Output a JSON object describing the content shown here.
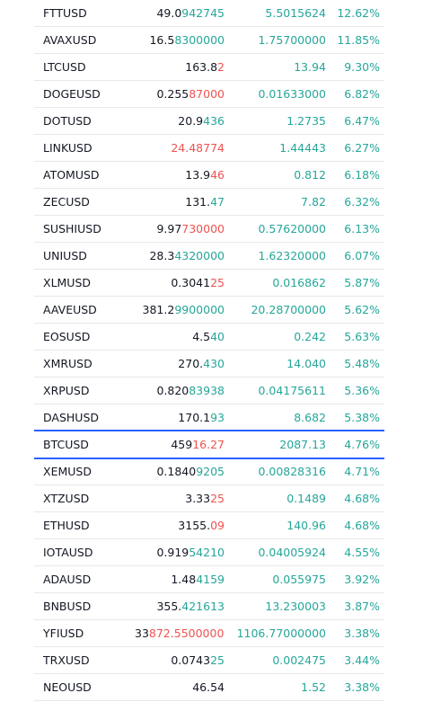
{
  "trend_colors": {
    "up": "#26a69a",
    "down": "#ef5350"
  },
  "highlight_color": "#2962ff",
  "rows": [
    {
      "symbol": "FTTUSD",
      "price_lead": "49.0",
      "price_tail": "942745",
      "tail_trend": "up",
      "change": "5.5015624",
      "change_pct": "12.62%"
    },
    {
      "symbol": "AVAXUSD",
      "price_lead": "16.5",
      "price_tail": "8300000",
      "tail_trend": "up",
      "change": "1.75700000",
      "change_pct": "11.85%"
    },
    {
      "symbol": "LTCUSD",
      "price_lead": "163.8",
      "price_tail": "2",
      "tail_trend": "down",
      "change": "13.94",
      "change_pct": "9.30%"
    },
    {
      "symbol": "DOGEUSD",
      "price_lead": "0.255",
      "price_tail": "87000",
      "tail_trend": "down",
      "change": "0.01633000",
      "change_pct": "6.82%"
    },
    {
      "symbol": "DOTUSD",
      "price_lead": "20.9",
      "price_tail": "436",
      "tail_trend": "up",
      "change": "1.2735",
      "change_pct": "6.47%"
    },
    {
      "symbol": "LINKUSD",
      "price_lead": "",
      "price_tail": "24.48774",
      "tail_trend": "down",
      "change": "1.44443",
      "change_pct": "6.27%"
    },
    {
      "symbol": "ATOMUSD",
      "price_lead": "13.9",
      "price_tail": "46",
      "tail_trend": "down",
      "change": "0.812",
      "change_pct": "6.18%"
    },
    {
      "symbol": "ZECUSD",
      "price_lead": "131.",
      "price_tail": "47",
      "tail_trend": "up",
      "change": "7.82",
      "change_pct": "6.32%"
    },
    {
      "symbol": "SUSHIUSD",
      "price_lead": "9.97",
      "price_tail": "730000",
      "tail_trend": "down",
      "change": "0.57620000",
      "change_pct": "6.13%"
    },
    {
      "symbol": "UNIUSD",
      "price_lead": "28.3",
      "price_tail": "4320000",
      "tail_trend": "up",
      "change": "1.62320000",
      "change_pct": "6.07%"
    },
    {
      "symbol": "XLMUSD",
      "price_lead": "0.3041",
      "price_tail": "25",
      "tail_trend": "down",
      "change": "0.016862",
      "change_pct": "5.87%"
    },
    {
      "symbol": "AAVEUSD",
      "price_lead": "381.2",
      "price_tail": "9900000",
      "tail_trend": "up",
      "change": "20.28700000",
      "change_pct": "5.62%"
    },
    {
      "symbol": "EOSUSD",
      "price_lead": "4.5",
      "price_tail": "40",
      "tail_trend": "up",
      "change": "0.242",
      "change_pct": "5.63%"
    },
    {
      "symbol": "XMRUSD",
      "price_lead": "270.",
      "price_tail": "430",
      "tail_trend": "up",
      "change": "14.040",
      "change_pct": "5.48%"
    },
    {
      "symbol": "XRPUSD",
      "price_lead": "0.820",
      "price_tail": "83938",
      "tail_trend": "up",
      "change": "0.04175611",
      "change_pct": "5.36%"
    },
    {
      "symbol": "DASHUSD",
      "price_lead": "170.1",
      "price_tail": "93",
      "tail_trend": "up",
      "change": "8.682",
      "change_pct": "5.38%"
    },
    {
      "symbol": "BTCUSD",
      "price_lead": "459",
      "price_tail": "16.27",
      "tail_trend": "down",
      "change": "2087.13",
      "change_pct": "4.76%",
      "selected": true
    },
    {
      "symbol": "XEMUSD",
      "price_lead": "0.1840",
      "price_tail": "9205",
      "tail_trend": "up",
      "change": "0.00828316",
      "change_pct": "4.71%"
    },
    {
      "symbol": "XTZUSD",
      "price_lead": "3.33",
      "price_tail": "25",
      "tail_trend": "down",
      "change": "0.1489",
      "change_pct": "4.68%"
    },
    {
      "symbol": "ETHUSD",
      "price_lead": "3155.",
      "price_tail": "09",
      "tail_trend": "down",
      "change": "140.96",
      "change_pct": "4.68%"
    },
    {
      "symbol": "IOTAUSD",
      "price_lead": "0.919",
      "price_tail": "54210",
      "tail_trend": "up",
      "change": "0.04005924",
      "change_pct": "4.55%"
    },
    {
      "symbol": "ADAUSD",
      "price_lead": "1.48",
      "price_tail": "4159",
      "tail_trend": "up",
      "change": "0.055975",
      "change_pct": "3.92%"
    },
    {
      "symbol": "BNBUSD",
      "price_lead": "355.",
      "price_tail": "421613",
      "tail_trend": "up",
      "change": "13.230003",
      "change_pct": "3.87%"
    },
    {
      "symbol": "YFIUSD",
      "price_lead": "33",
      "price_tail": "872.55000000",
      "tail_trend": "down",
      "change": "1106.77000000",
      "change_pct": "3.38%"
    },
    {
      "symbol": "TRXUSD",
      "price_lead": "0.0743",
      "price_tail": "25",
      "tail_trend": "up",
      "change": "0.002475",
      "change_pct": "3.44%"
    },
    {
      "symbol": "NEOUSD",
      "price_lead": "46.54",
      "price_tail": "",
      "tail_trend": "up",
      "change": "1.52",
      "change_pct": "3.38%"
    }
  ]
}
